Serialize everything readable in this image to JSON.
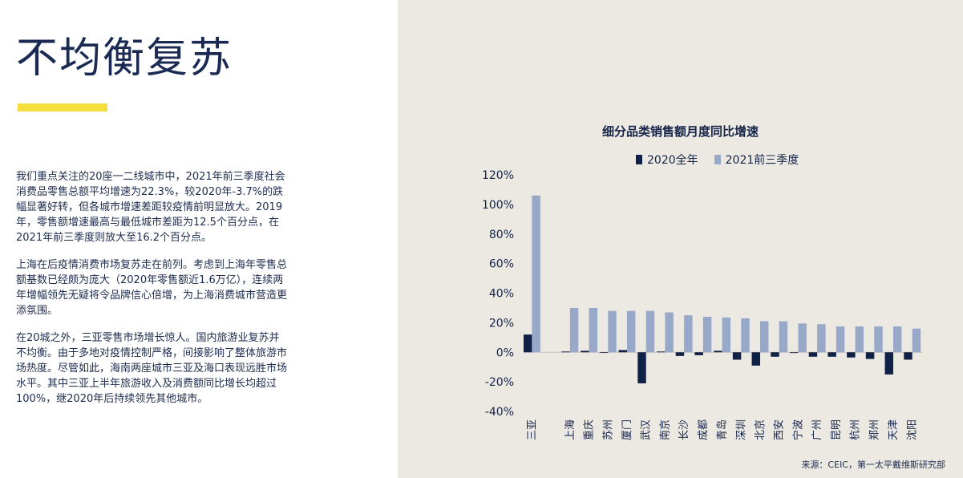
{
  "page": {
    "title": "不均衡复苏",
    "paragraphs": [
      "我们重点关注的20座一二线城市中，2021年前三季度社会消费品零售总额平均增速为22.3%，较2020年-3.7%的跌幅显著好转，但各城市增速差距较疫情前明显放大。2019年，零售额增速最高与最低城市差距为12.5个百分点，在2021年前三季度则放大至16.2个百分点。",
      "上海在后疫情消费市场复苏走在前列。考虑到上海年零售总额基数已经颇为庞大（2020年零售额近1.6万亿），连续两年增幅领先无疑将令品牌信心倍增，为上海消费城市营造更添氛围。",
      "在20城之外，三亚零售市场增长惊人。国内旅游业复苏并不均衡。由于多地对疫情控制严格，间接影响了整体旅游市场热度。尽管如此，海南两座城市三亚及海口表现远胜市场水平。其中三亚上半年旅游收入及消费额同比增长均超过100%，继2020年后持续领先其他城市。"
    ],
    "source": "来源：CEIC，第一太平戴维斯研究部"
  },
  "colors": {
    "series2020": "#0f2147",
    "series2021": "#98a8c8",
    "axis_text": "#15254a",
    "panel_bg": "#ece8e2",
    "accent": "#f5de3c"
  },
  "chart_data": {
    "type": "bar",
    "title": "细分品类销售额月度同比增速",
    "legend_position": "top",
    "grid": false,
    "ylim": [
      -40,
      120
    ],
    "yticks": [
      "120%",
      "100%",
      "80%",
      "60%",
      "40%",
      "20%",
      "0%",
      "-20%",
      "-40%"
    ],
    "categories": [
      "三亚",
      "上海",
      "重庆",
      "苏州",
      "厦门",
      "武汉",
      "南京",
      "长沙",
      "成都",
      "青岛",
      "深圳",
      "北京",
      "西安",
      "宁波",
      "广州",
      "昆明",
      "杭州",
      "郑州",
      "天津",
      "沈阳"
    ],
    "series": [
      {
        "name": "2020全年",
        "values": [
          12,
          0.5,
          1,
          0,
          1.5,
          -21,
          0.5,
          -2.5,
          -2,
          1,
          -5,
          -9,
          -3,
          -0.5,
          -3,
          -3,
          -3.5,
          -4.5,
          -15,
          -5
        ]
      },
      {
        "name": "2021前三季度",
        "values": [
          106,
          30,
          30,
          28,
          28,
          28,
          27,
          25,
          24,
          23.5,
          23,
          21,
          21,
          19.5,
          19,
          17.5,
          17.5,
          17.5,
          17.5,
          16
        ]
      }
    ]
  }
}
